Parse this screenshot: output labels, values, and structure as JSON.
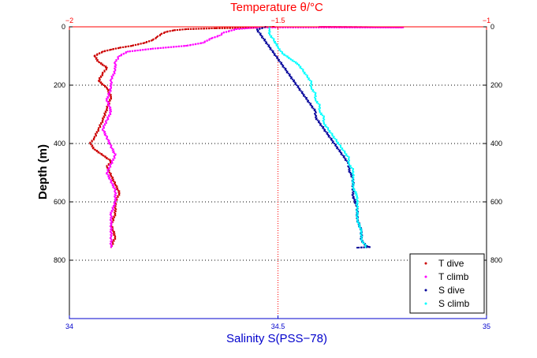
{
  "chart_data": {
    "type": "scatter",
    "title": "",
    "top_xlabel": "Temperature θ/°C",
    "bottom_xlabel": "Salinity S(PSS−78)",
    "ylabel": "Depth (m)",
    "top_xlim": [
      -2,
      -1
    ],
    "bottom_xlim": [
      34,
      35
    ],
    "ylim": [
      0,
      1000
    ],
    "y_reversed": true,
    "top_xticks": [
      "−2",
      "−1.5",
      "−1"
    ],
    "bottom_xticks": [
      "34",
      "34.5",
      "35"
    ],
    "yticks": [
      "0",
      "200",
      "400",
      "600",
      "800"
    ],
    "grid": "dotted",
    "legend_position": "bottom-right",
    "colors": {
      "temperature_axis": "#ff0000",
      "salinity_axis": "#0000cc",
      "frame": "#000000"
    },
    "series": [
      {
        "name": "T dive",
        "axis": "temperature",
        "color": "#cc0000",
        "points": [
          [
            -1.51,
            0
          ],
          [
            -1.55,
            3
          ],
          [
            -1.65,
            5
          ],
          [
            -1.72,
            8
          ],
          [
            -1.75,
            12
          ],
          [
            -1.77,
            18
          ],
          [
            -1.78,
            25
          ],
          [
            -1.79,
            35
          ],
          [
            -1.8,
            45
          ],
          [
            -1.82,
            55
          ],
          [
            -1.85,
            65
          ],
          [
            -1.88,
            72
          ],
          [
            -1.9,
            78
          ],
          [
            -1.92,
            85
          ],
          [
            -1.94,
            100
          ],
          [
            -1.93,
            120
          ],
          [
            -1.91,
            140
          ],
          [
            -1.92,
            160
          ],
          [
            -1.93,
            185
          ],
          [
            -1.91,
            210
          ],
          [
            -1.9,
            240
          ],
          [
            -1.91,
            280
          ],
          [
            -1.92,
            320
          ],
          [
            -1.93,
            350
          ],
          [
            -1.94,
            380
          ],
          [
            -1.95,
            400
          ],
          [
            -1.94,
            420
          ],
          [
            -1.92,
            440
          ],
          [
            -1.9,
            460
          ],
          [
            -1.91,
            480
          ],
          [
            -1.9,
            510
          ],
          [
            -1.89,
            540
          ],
          [
            -1.88,
            570
          ],
          [
            -1.89,
            600
          ],
          [
            -1.89,
            640
          ],
          [
            -1.9,
            680
          ],
          [
            -1.89,
            720
          ],
          [
            -1.9,
            755
          ]
        ]
      },
      {
        "name": "T climb",
        "axis": "temperature",
        "color": "#ff00ff",
        "points": [
          [
            -1.4,
            0
          ],
          [
            -1.3,
            1
          ],
          [
            -1.2,
            2
          ],
          [
            -1.55,
            2
          ],
          [
            -1.6,
            8
          ],
          [
            -1.63,
            20
          ],
          [
            -1.64,
            30
          ],
          [
            -1.66,
            40
          ],
          [
            -1.68,
            55
          ],
          [
            -1.72,
            65
          ],
          [
            -1.8,
            75
          ],
          [
            -1.86,
            85
          ],
          [
            -1.88,
            100
          ],
          [
            -1.89,
            120
          ],
          [
            -1.89,
            150
          ],
          [
            -1.9,
            180
          ],
          [
            -1.9,
            210
          ],
          [
            -1.91,
            250
          ],
          [
            -1.9,
            290
          ],
          [
            -1.91,
            320
          ],
          [
            -1.92,
            350
          ],
          [
            -1.91,
            380
          ],
          [
            -1.9,
            410
          ],
          [
            -1.89,
            440
          ],
          [
            -1.9,
            470
          ],
          [
            -1.91,
            500
          ],
          [
            -1.9,
            530
          ],
          [
            -1.89,
            560
          ],
          [
            -1.89,
            600
          ],
          [
            -1.9,
            640
          ],
          [
            -1.9,
            680
          ],
          [
            -1.9,
            720
          ],
          [
            -1.9,
            755
          ]
        ]
      },
      {
        "name": "S dive",
        "axis": "salinity",
        "color": "#000099",
        "points": [
          [
            34.47,
            0
          ],
          [
            34.45,
            10
          ],
          [
            34.46,
            30
          ],
          [
            34.47,
            50
          ],
          [
            34.48,
            70
          ],
          [
            34.49,
            90
          ],
          [
            34.5,
            110
          ],
          [
            34.51,
            130
          ],
          [
            34.52,
            150
          ],
          [
            34.53,
            170
          ],
          [
            34.54,
            190
          ],
          [
            34.55,
            210
          ],
          [
            34.56,
            230
          ],
          [
            34.57,
            250
          ],
          [
            34.58,
            270
          ],
          [
            34.59,
            290
          ],
          [
            34.59,
            310
          ],
          [
            34.6,
            330
          ],
          [
            34.61,
            350
          ],
          [
            34.62,
            370
          ],
          [
            34.63,
            390
          ],
          [
            34.64,
            410
          ],
          [
            34.65,
            430
          ],
          [
            34.66,
            450
          ],
          [
            34.67,
            470
          ],
          [
            34.67,
            490
          ],
          [
            34.68,
            520
          ],
          [
            34.68,
            550
          ],
          [
            34.68,
            580
          ],
          [
            34.69,
            620
          ],
          [
            34.69,
            660
          ],
          [
            34.7,
            700
          ],
          [
            34.7,
            730
          ],
          [
            34.71,
            750
          ],
          [
            34.72,
            755
          ],
          [
            34.69,
            757
          ]
        ]
      },
      {
        "name": "S climb",
        "axis": "salinity",
        "color": "#00ffff",
        "points": [
          [
            34.48,
            0
          ],
          [
            34.48,
            10
          ],
          [
            34.48,
            25
          ],
          [
            34.49,
            45
          ],
          [
            34.5,
            70
          ],
          [
            34.51,
            90
          ],
          [
            34.53,
            110
          ],
          [
            34.55,
            130
          ],
          [
            34.56,
            150
          ],
          [
            34.57,
            170
          ],
          [
            34.58,
            190
          ],
          [
            34.58,
            210
          ],
          [
            34.59,
            230
          ],
          [
            34.59,
            250
          ],
          [
            34.6,
            270
          ],
          [
            34.6,
            290
          ],
          [
            34.61,
            310
          ],
          [
            34.61,
            330
          ],
          [
            34.62,
            350
          ],
          [
            34.63,
            370
          ],
          [
            34.64,
            390
          ],
          [
            34.65,
            410
          ],
          [
            34.66,
            430
          ],
          [
            34.67,
            450
          ],
          [
            34.67,
            470
          ],
          [
            34.68,
            490
          ],
          [
            34.68,
            520
          ],
          [
            34.68,
            550
          ],
          [
            34.69,
            580
          ],
          [
            34.69,
            620
          ],
          [
            34.69,
            660
          ],
          [
            34.7,
            700
          ],
          [
            34.7,
            730
          ],
          [
            34.71,
            750
          ],
          [
            34.71,
            755
          ]
        ]
      }
    ]
  }
}
